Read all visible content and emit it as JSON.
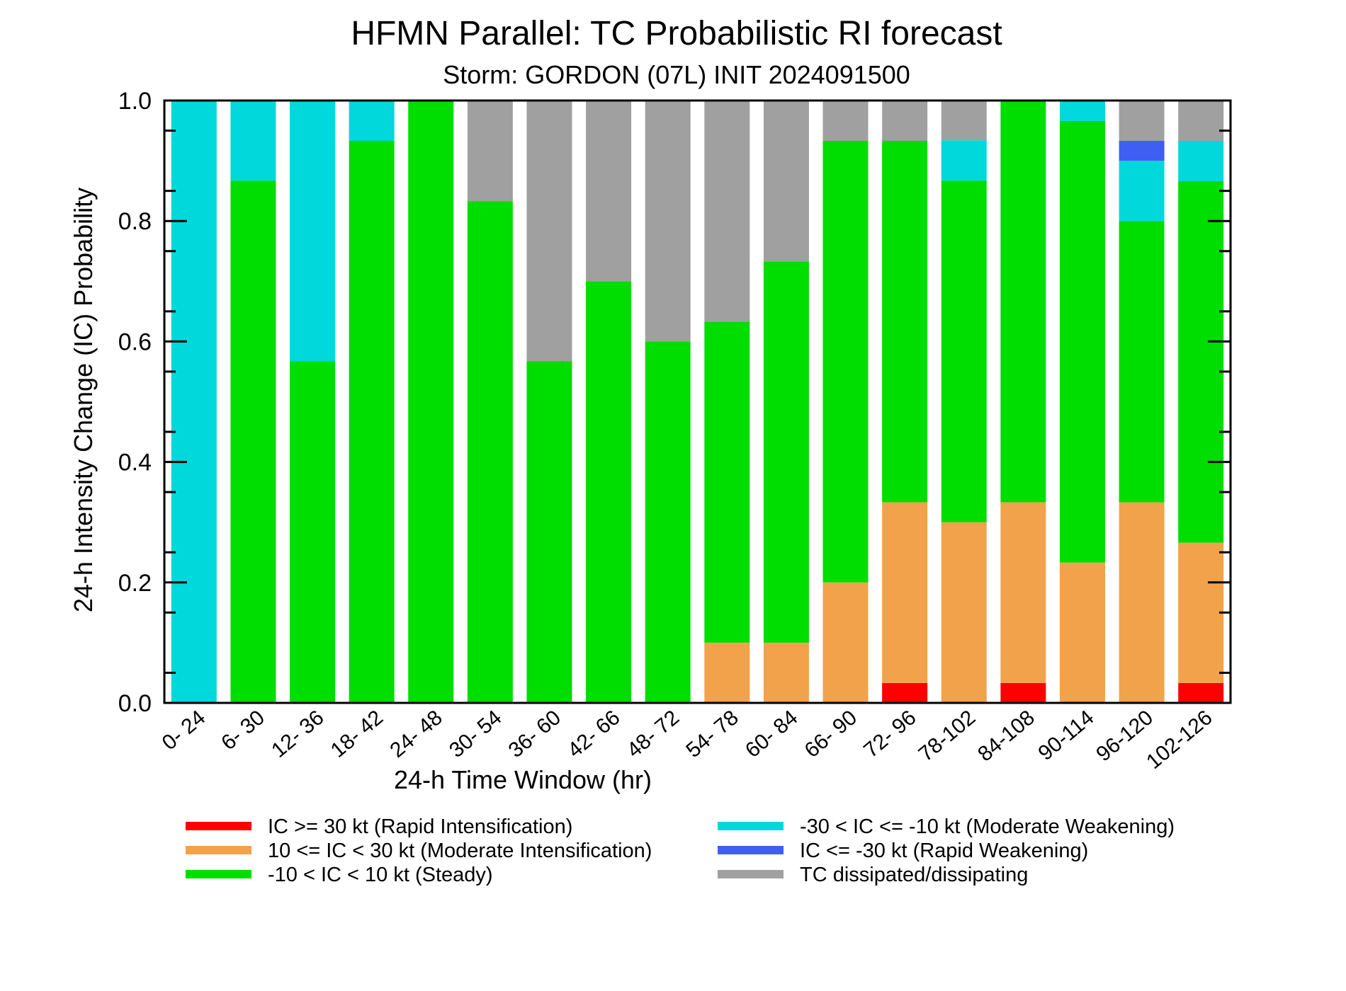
{
  "chart_data": {
    "type": "bar",
    "stacked": true,
    "title": "HFMN Parallel: TC Probabilistic RI forecast",
    "subtitle": "Storm: GORDON (07L) INIT 2024091500",
    "xlabel": "24-h Time Window (hr)",
    "ylabel": "24-h Intensity Change (IC) Probability",
    "ylim": [
      0,
      1
    ],
    "yticks": [
      "0.0",
      "0.2",
      "0.4",
      "0.6",
      "0.8",
      "1.0"
    ],
    "categories": [
      "0- 24",
      "6- 30",
      "12- 36",
      "18- 42",
      "24- 48",
      "30- 54",
      "36- 60",
      "42- 66",
      "48- 72",
      "54- 78",
      "60- 84",
      "66- 90",
      "72- 96",
      "78-102",
      "84-108",
      "90-114",
      "96-120",
      "102-126"
    ],
    "series": [
      {
        "name": "IC >= 30 kt (Rapid Intensification)",
        "color": "#ff0000",
        "values": [
          0,
          0,
          0,
          0,
          0,
          0,
          0,
          0,
          0,
          0,
          0,
          0,
          0.033,
          0,
          0.033,
          0,
          0,
          0.033
        ]
      },
      {
        "name": "10 <= IC < 30 kt (Moderate Intensification)",
        "color": "#f2a24a",
        "values": [
          0,
          0,
          0,
          0,
          0,
          0,
          0,
          0,
          0,
          0.1,
          0.1,
          0.2,
          0.3,
          0.3,
          0.3,
          0.233,
          0.333,
          0.233
        ]
      },
      {
        "name": "-10 < IC < 10 kt (Steady)",
        "color": "#00dd00",
        "values": [
          0,
          0.867,
          0.567,
          0.933,
          1.0,
          0.833,
          0.567,
          0.7,
          0.6,
          0.533,
          0.633,
          0.733,
          0.6,
          0.567,
          0.667,
          0.733,
          0.467,
          0.6
        ]
      },
      {
        "name": "-30 < IC <= -10 kt (Moderate Weakening)",
        "color": "#00d8dc",
        "values": [
          1.0,
          0.133,
          0.433,
          0.067,
          0,
          0,
          0,
          0,
          0,
          0,
          0,
          0,
          0,
          0.067,
          0,
          0.033,
          0.1,
          0.067
        ]
      },
      {
        "name": "IC <= -30 kt (Rapid Weakening)",
        "color": "#3f5ff2",
        "values": [
          0,
          0,
          0,
          0,
          0,
          0,
          0,
          0,
          0,
          0,
          0,
          0,
          0,
          0,
          0,
          0,
          0.033,
          0
        ]
      },
      {
        "name": "TC dissipated/dissipating",
        "color": "#a0a0a0",
        "values": [
          0,
          0,
          0,
          0,
          0,
          0.167,
          0.433,
          0.3,
          0.4,
          0.367,
          0.267,
          0.067,
          0.067,
          0.067,
          0,
          0,
          0.067,
          0.067
        ]
      }
    ],
    "legend_order": [
      0,
      3,
      1,
      4,
      2,
      5
    ],
    "legend_position": "bottom, two columns",
    "grid": false
  }
}
